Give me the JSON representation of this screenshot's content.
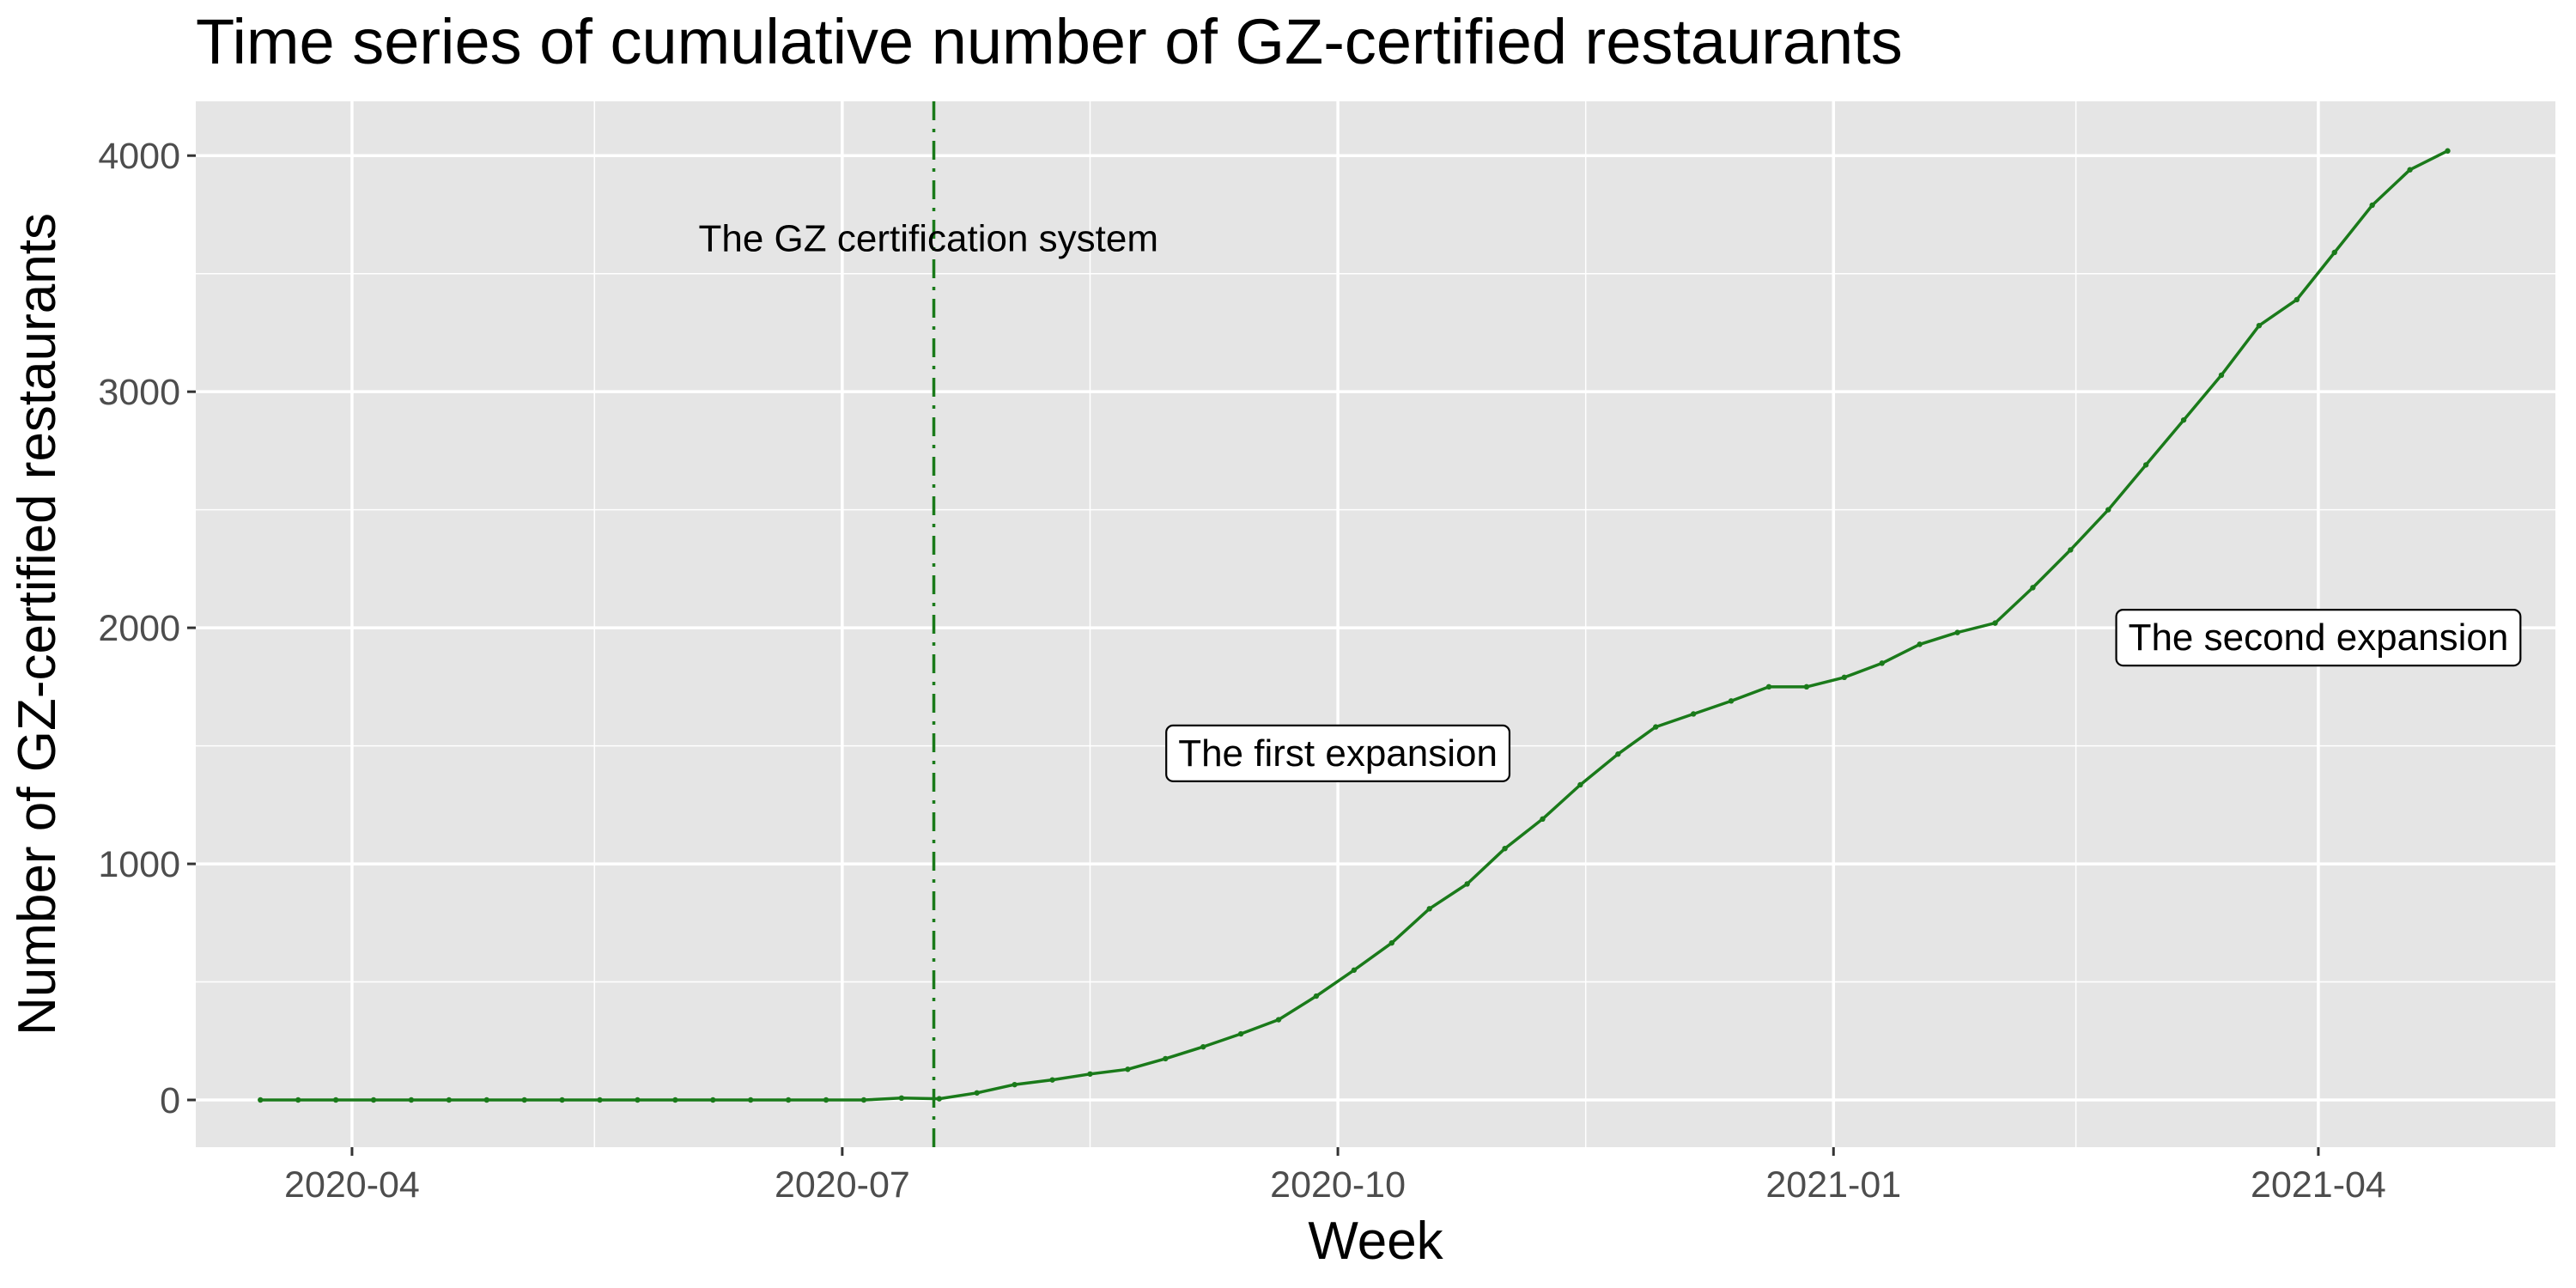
{
  "chart_data": {
    "type": "line",
    "title": "Time series of cumulative number of GZ-certified restaurants",
    "xlabel": "Week",
    "ylabel": "Number of GZ-certified restaurants",
    "x_scale": "date",
    "xlim": [
      "2020-03-03",
      "2021-05-15"
    ],
    "ylim": [
      -200,
      4230
    ],
    "x_ticks": [
      "2020-04",
      "2020-07",
      "2020-10",
      "2021-01",
      "2021-04"
    ],
    "x_tick_dates": [
      "2020-04-01",
      "2020-07-01",
      "2020-10-01",
      "2021-01-01",
      "2021-04-01"
    ],
    "x_minor_dates": [
      "2020-05-16",
      "2020-08-16",
      "2020-11-16",
      "2021-02-15"
    ],
    "y_ticks": [
      0,
      1000,
      2000,
      3000,
      4000
    ],
    "y_minor": [
      500,
      1500,
      2500,
      3500
    ],
    "grid": true,
    "legend": "none",
    "colors": {
      "series": "#1a7a1a",
      "panel": "#e5e5e5",
      "grid": "#ffffff",
      "tick_text": "#4d4d4d"
    },
    "series": [
      {
        "x": [
          "2020-03-15",
          "2020-03-22",
          "2020-03-29",
          "2020-04-05",
          "2020-04-12",
          "2020-04-19",
          "2020-04-26",
          "2020-05-03",
          "2020-05-10",
          "2020-05-17",
          "2020-05-24",
          "2020-05-31",
          "2020-06-07",
          "2020-06-14",
          "2020-06-21",
          "2020-06-28",
          "2020-07-05",
          "2020-07-12",
          "2020-07-19",
          "2020-07-26",
          "2020-08-02",
          "2020-08-09",
          "2020-08-16",
          "2020-08-23",
          "2020-08-30",
          "2020-09-06",
          "2020-09-13",
          "2020-09-20",
          "2020-09-27",
          "2020-10-04",
          "2020-10-11",
          "2020-10-18",
          "2020-10-25",
          "2020-11-01",
          "2020-11-08",
          "2020-11-15",
          "2020-11-22",
          "2020-11-29",
          "2020-12-06",
          "2020-12-13",
          "2020-12-20",
          "2020-12-27",
          "2021-01-03",
          "2021-01-10",
          "2021-01-17",
          "2021-01-24",
          "2021-01-31",
          "2021-02-07",
          "2021-02-14",
          "2021-02-21",
          "2021-02-28",
          "2021-03-07",
          "2021-03-14",
          "2021-03-21",
          "2021-03-28",
          "2021-04-04",
          "2021-04-11",
          "2021-04-18",
          "2021-04-25"
        ],
        "values": [
          0,
          0,
          0,
          0,
          0,
          0,
          0,
          0,
          0,
          0,
          0,
          0,
          0,
          0,
          0,
          0,
          0,
          8,
          5,
          30,
          65,
          85,
          110,
          130,
          175,
          225,
          280,
          340,
          440,
          550,
          665,
          810,
          915,
          1065,
          1190,
          1335,
          1465,
          1580,
          1635,
          1690,
          1750,
          1750,
          1790,
          1850,
          1930,
          1980,
          2020,
          2170,
          2330,
          2500,
          2690,
          2880,
          3070,
          3280,
          3390,
          3590,
          3790,
          3940,
          4020
        ]
      }
    ],
    "vline": {
      "date": "2020-07-18",
      "style": "dotdash"
    },
    "annotations": [
      {
        "text": "The GZ certification system",
        "x": "2020-07-17",
        "y": 3650,
        "boxed": false
      },
      {
        "text": "The first expansion",
        "x": "2020-10-01",
        "y": 1470,
        "boxed": true
      },
      {
        "text": "The second expansion",
        "x": "2021-04-01",
        "y": 1960,
        "boxed": true
      }
    ]
  }
}
